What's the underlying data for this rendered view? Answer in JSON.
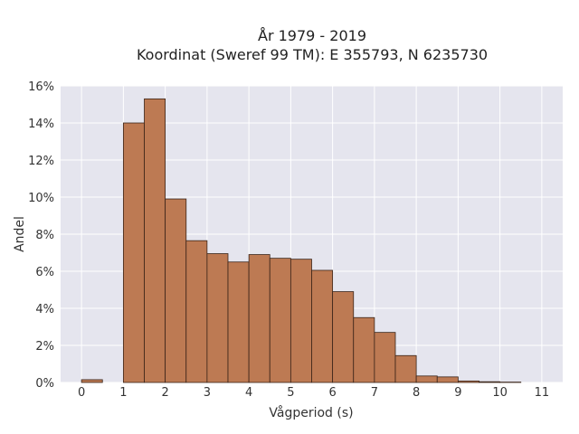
{
  "chart_data": {
    "type": "bar",
    "title_line1": "År 1979 - 2019",
    "title_line2": "Koordinat (Sweref 99 TM): E 355793, N 6235730",
    "xlabel": "Vågperiod (s)",
    "ylabel": "Andel",
    "xlim": [
      -0.5,
      11.5
    ],
    "ylim": [
      0,
      16
    ],
    "x_ticks": [
      0,
      1,
      2,
      3,
      4,
      5,
      6,
      7,
      8,
      9,
      10,
      11
    ],
    "y_ticks": [
      0,
      2,
      4,
      6,
      8,
      10,
      12,
      14,
      16
    ],
    "y_tick_labels": [
      "0%",
      "2%",
      "4%",
      "6%",
      "8%",
      "10%",
      "12%",
      "14%",
      "16%"
    ],
    "bin_width": 0.5,
    "bins": [
      {
        "x0": 0.0,
        "value": 0.15
      },
      {
        "x0": 0.5,
        "value": 0.0
      },
      {
        "x0": 1.0,
        "value": 14.0
      },
      {
        "x0": 1.5,
        "value": 15.3
      },
      {
        "x0": 2.0,
        "value": 9.9
      },
      {
        "x0": 2.5,
        "value": 7.65
      },
      {
        "x0": 3.0,
        "value": 6.95
      },
      {
        "x0": 3.5,
        "value": 6.5
      },
      {
        "x0": 4.0,
        "value": 6.9
      },
      {
        "x0": 4.5,
        "value": 6.7
      },
      {
        "x0": 5.0,
        "value": 6.65
      },
      {
        "x0": 5.5,
        "value": 6.05
      },
      {
        "x0": 6.0,
        "value": 4.9
      },
      {
        "x0": 6.5,
        "value": 3.5
      },
      {
        "x0": 7.0,
        "value": 2.7
      },
      {
        "x0": 7.5,
        "value": 1.45
      },
      {
        "x0": 8.0,
        "value": 0.35
      },
      {
        "x0": 8.5,
        "value": 0.3
      },
      {
        "x0": 9.0,
        "value": 0.08
      },
      {
        "x0": 9.5,
        "value": 0.04
      },
      {
        "x0": 10.0,
        "value": 0.02
      }
    ],
    "grid": true,
    "bar_color": "#bd7a53",
    "bar_edge_color": "#3a2418",
    "plot_bg_color": "#e5e5ee"
  }
}
